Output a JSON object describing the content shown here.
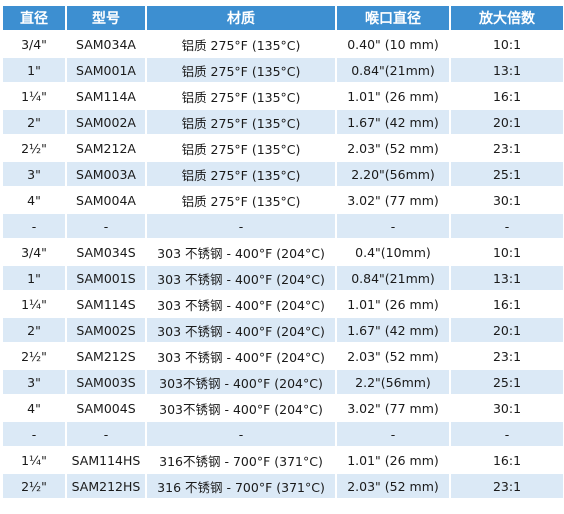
{
  "table": {
    "headers": [
      "直径",
      "型号",
      "材质",
      "喉口直径",
      "放大倍数"
    ],
    "rows": [
      [
        "3/4\"",
        "SAM034A",
        "铝质 275°F (135°C)",
        "0.40\" (10 mm)",
        "10:1"
      ],
      [
        "1\"",
        "SAM001A",
        "铝质 275°F (135°C)",
        "0.84\"(21mm)",
        "13:1"
      ],
      [
        "1¼\"",
        "SAM114A",
        "铝质 275°F (135°C)",
        "1.01\" (26 mm)",
        "16:1"
      ],
      [
        "2\"",
        "SAM002A",
        "铝质 275°F (135°C)",
        "1.67\" (42 mm)",
        "20:1"
      ],
      [
        "2½\"",
        "SAM212A",
        "铝质 275°F (135°C)",
        "2.03\" (52 mm)",
        "23:1"
      ],
      [
        "3\"",
        "SAM003A",
        "铝质 275°F (135°C)",
        "2.20\"(56mm)",
        "25:1"
      ],
      [
        "4\"",
        "SAM004A",
        "铝质 275°F (135°C)",
        "3.02\" (77 mm)",
        "30:1"
      ],
      [
        "-",
        "-",
        "-",
        "-",
        "-"
      ],
      [
        "3/4\"",
        "SAM034S",
        "303 不锈钢 - 400°F (204°C)",
        "0.4\"(10mm)",
        "10:1"
      ],
      [
        "1\"",
        "SAM001S",
        "303 不锈钢 - 400°F (204°C)",
        "0.84\"(21mm)",
        "13:1"
      ],
      [
        "1¼\"",
        "SAM114S",
        "303 不锈钢 - 400°F (204°C)",
        "1.01\" (26 mm)",
        "16:1"
      ],
      [
        "2\"",
        "SAM002S",
        "303 不锈钢 - 400°F (204°C)",
        "1.67\" (42 mm)",
        "20:1"
      ],
      [
        "2½\"",
        "SAM212S",
        "303 不锈钢 - 400°F (204°C)",
        "2.03\" (52 mm)",
        "23:1"
      ],
      [
        "3\"",
        "SAM003S",
        "303不锈钢 - 400°F (204°C)",
        "2.2\"(56mm)",
        "25:1"
      ],
      [
        "4\"",
        "SAM004S",
        "303不锈钢 - 400°F (204°C)",
        "3.02\" (77 mm)",
        "30:1"
      ],
      [
        "-",
        "-",
        "-",
        "-",
        "-"
      ],
      [
        "1¼\"",
        "SAM114HS",
        "316不锈钢 - 700°F (371°C)",
        "1.01\" (26 mm)",
        "16:1"
      ],
      [
        "2½\"",
        "SAM212HS",
        "316 不锈钢 - 700°F (371°C)",
        "2.03\" (52 mm)",
        "23:1"
      ]
    ]
  },
  "colors": {
    "header_bg": "#3d8fd1",
    "header_text": "#ffffff",
    "stripe_bg": "#dbe9f6",
    "row_bg": "#ffffff"
  }
}
